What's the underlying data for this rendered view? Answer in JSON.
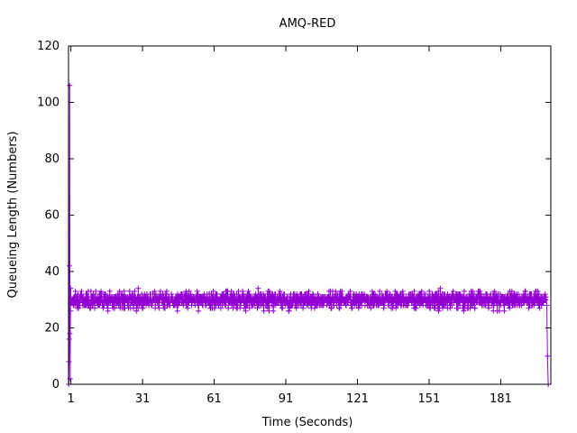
{
  "chart_data": {
    "type": "scatter",
    "title": "AMQ-RED",
    "xlabel": "Time (Seconds)",
    "ylabel": "Queueing Length (Numbers)",
    "xlim": [
      0,
      202
    ],
    "ylim": [
      0,
      120
    ],
    "x_ticks": [
      1,
      31,
      61,
      91,
      121,
      151,
      181
    ],
    "y_ticks": [
      0,
      20,
      40,
      60,
      80,
      100,
      120
    ],
    "grid": false,
    "legend": "none",
    "series": [
      {
        "color": "#9400d3",
        "marker": "plus",
        "startup_points": [
          {
            "x": 0.1,
            "y": 0
          },
          {
            "x": 0.2,
            "y": 8
          },
          {
            "x": 0.3,
            "y": 16
          },
          {
            "x": 0.4,
            "y": 42
          },
          {
            "x": 0.5,
            "y": 106
          },
          {
            "x": 0.6,
            "y": 18
          },
          {
            "x": 0.7,
            "y": 2
          },
          {
            "x": 0.8,
            "y": 26
          },
          {
            "x": 0.9,
            "y": 34
          }
        ],
        "steady_band": {
          "x_start": 1,
          "x_end": 200,
          "y_min": 26,
          "y_max": 34,
          "typical": 30
        },
        "end_points": [
          {
            "x": 200.3,
            "y": 28
          },
          {
            "x": 200.6,
            "y": 10
          },
          {
            "x": 200.9,
            "y": 0
          }
        ]
      }
    ]
  }
}
